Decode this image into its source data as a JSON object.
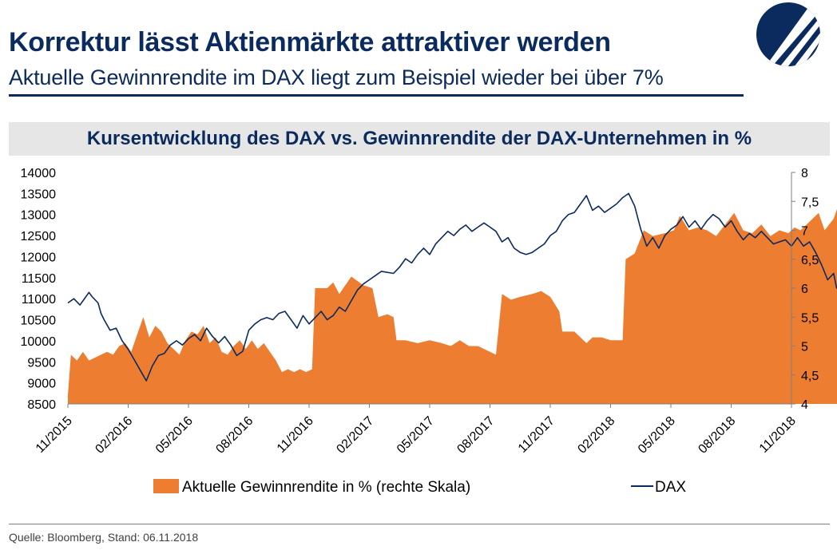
{
  "header": {
    "title": "Korrektur lässt Aktienmärkte attraktiver werden",
    "subtitle": "Aktuelle Gewinnrendite im DAX liegt zum Beispiel wieder bei über 7%"
  },
  "colors": {
    "navy": "#0b2a5e",
    "orange": "#ed7d31",
    "title_bar": "#e6e6e6"
  },
  "source": "Quelle: Bloomberg, Stand: 06.11.2018",
  "chart_data": {
    "type": "area+line",
    "title": "Kursentwicklung des DAX vs. Gewinnrendite der DAX-Unternehmen in %",
    "x_labels": [
      "11/2015",
      "02/2016",
      "05/2016",
      "08/2016",
      "11/2016",
      "02/2017",
      "05/2017",
      "08/2017",
      "11/2017",
      "02/2018",
      "05/2018",
      "08/2018",
      "11/2018"
    ],
    "xlim": [
      "2015-11",
      "2018-11"
    ],
    "y_left": {
      "min": 8500,
      "max": 14000,
      "ticks": [
        "8500",
        "9000",
        "9500",
        "10000",
        "10500",
        "11000",
        "11500",
        "12000",
        "12500",
        "13000",
        "13500",
        "14000"
      ]
    },
    "y_right": {
      "min": 4,
      "max": 8,
      "ticks": [
        "4",
        "4,5",
        "5",
        "5,5",
        "6",
        "6,5",
        "7",
        "7,5",
        "8"
      ]
    },
    "grid": false,
    "legend_position": "bottom",
    "series": [
      {
        "name": "Aktuelle Gewinnrendite in % (rechte Skala)",
        "type": "area",
        "axis": "right",
        "color": "#ed7d31",
        "points": [
          [
            0,
            4.15
          ],
          [
            0.05,
            4.85
          ],
          [
            0.15,
            4.75
          ],
          [
            0.25,
            4.9
          ],
          [
            0.35,
            4.75
          ],
          [
            0.45,
            4.8
          ],
          [
            0.55,
            4.85
          ],
          [
            0.65,
            4.9
          ],
          [
            0.75,
            4.85
          ],
          [
            0.85,
            5.0
          ],
          [
            0.95,
            5.05
          ],
          [
            1.05,
            4.9
          ],
          [
            1.15,
            5.2
          ],
          [
            1.25,
            5.5
          ],
          [
            1.35,
            5.15
          ],
          [
            1.45,
            5.35
          ],
          [
            1.55,
            5.25
          ],
          [
            1.65,
            5.05
          ],
          [
            1.75,
            4.95
          ],
          [
            1.85,
            4.85
          ],
          [
            1.95,
            5.1
          ],
          [
            2.05,
            5.25
          ],
          [
            2.15,
            5.2
          ],
          [
            2.25,
            5.35
          ],
          [
            2.35,
            5.05
          ],
          [
            2.45,
            5.15
          ],
          [
            2.55,
            4.9
          ],
          [
            2.65,
            4.85
          ],
          [
            2.75,
            5.0
          ],
          [
            2.85,
            5.1
          ],
          [
            2.95,
            4.95
          ],
          [
            3.05,
            5.1
          ],
          [
            3.15,
            4.95
          ],
          [
            3.25,
            5.05
          ],
          [
            3.35,
            4.9
          ],
          [
            3.45,
            4.75
          ],
          [
            3.55,
            4.55
          ],
          [
            3.65,
            4.6
          ],
          [
            3.75,
            4.55
          ],
          [
            3.85,
            4.6
          ],
          [
            3.95,
            4.55
          ],
          [
            4.05,
            4.6
          ],
          [
            4.1,
            6.0
          ],
          [
            4.3,
            6.0
          ],
          [
            4.4,
            6.1
          ],
          [
            4.5,
            5.9
          ],
          [
            4.7,
            6.2
          ],
          [
            4.9,
            6.05
          ],
          [
            5.05,
            6.0
          ],
          [
            5.15,
            5.5
          ],
          [
            5.3,
            5.55
          ],
          [
            5.4,
            5.5
          ],
          [
            5.45,
            5.1
          ],
          [
            5.6,
            5.1
          ],
          [
            5.8,
            5.05
          ],
          [
            6.0,
            5.1
          ],
          [
            6.2,
            5.05
          ],
          [
            6.35,
            5.0
          ],
          [
            6.5,
            5.1
          ],
          [
            6.65,
            5.0
          ],
          [
            6.8,
            5.0
          ],
          [
            7.0,
            4.9
          ],
          [
            7.1,
            4.85
          ],
          [
            7.2,
            5.9
          ],
          [
            7.35,
            5.8
          ],
          [
            7.5,
            5.85
          ],
          [
            7.7,
            5.9
          ],
          [
            7.85,
            5.95
          ],
          [
            8.0,
            5.85
          ],
          [
            8.15,
            5.6
          ],
          [
            8.2,
            5.25
          ],
          [
            8.4,
            5.25
          ],
          [
            8.6,
            5.05
          ],
          [
            8.7,
            5.15
          ],
          [
            8.85,
            5.15
          ],
          [
            9.0,
            5.1
          ],
          [
            9.2,
            5.1
          ],
          [
            9.25,
            6.5
          ],
          [
            9.4,
            6.6
          ],
          [
            9.55,
            7.0
          ],
          [
            9.7,
            6.9
          ],
          [
            9.9,
            6.95
          ],
          [
            10.05,
            7.0
          ],
          [
            10.15,
            7.25
          ],
          [
            10.3,
            7.0
          ],
          [
            10.45,
            7.05
          ],
          [
            10.6,
            7.0
          ],
          [
            10.75,
            6.9
          ],
          [
            10.9,
            7.1
          ],
          [
            11.05,
            7.3
          ],
          [
            11.2,
            7.0
          ],
          [
            11.35,
            6.95
          ],
          [
            11.5,
            7.1
          ],
          [
            11.65,
            6.9
          ],
          [
            11.8,
            7.0
          ],
          [
            11.95,
            6.95
          ],
          [
            12.05,
            7.05
          ],
          [
            12.15,
            7.0
          ],
          [
            12.25,
            7.1
          ],
          [
            12.35,
            7.2
          ],
          [
            12.45,
            7.3
          ],
          [
            12.55,
            7.0
          ],
          [
            12.7,
            7.2
          ],
          [
            12.8,
            7.5
          ],
          [
            12.9,
            7.2
          ],
          [
            13.0,
            7.25
          ]
        ]
      },
      {
        "name": "DAX",
        "type": "line",
        "axis": "left",
        "color": "#0b2a5e",
        "points": [
          [
            0,
            10900
          ],
          [
            0.1,
            11000
          ],
          [
            0.2,
            10850
          ],
          [
            0.3,
            11050
          ],
          [
            0.35,
            11150
          ],
          [
            0.4,
            11050
          ],
          [
            0.5,
            10900
          ],
          [
            0.55,
            10650
          ],
          [
            0.6,
            10500
          ],
          [
            0.7,
            10250
          ],
          [
            0.8,
            10300
          ],
          [
            0.9,
            10000
          ],
          [
            1.0,
            9800
          ],
          [
            1.1,
            9550
          ],
          [
            1.2,
            9300
          ],
          [
            1.3,
            9050
          ],
          [
            1.4,
            9400
          ],
          [
            1.5,
            9650
          ],
          [
            1.6,
            9700
          ],
          [
            1.7,
            9900
          ],
          [
            1.8,
            10000
          ],
          [
            1.9,
            9900
          ],
          [
            2.0,
            10050
          ],
          [
            2.1,
            10150
          ],
          [
            2.2,
            10000
          ],
          [
            2.3,
            10300
          ],
          [
            2.4,
            10100
          ],
          [
            2.5,
            9950
          ],
          [
            2.6,
            10100
          ],
          [
            2.7,
            9900
          ],
          [
            2.8,
            9650
          ],
          [
            2.9,
            9750
          ],
          [
            3.0,
            10250
          ],
          [
            3.1,
            10400
          ],
          [
            3.2,
            10500
          ],
          [
            3.3,
            10550
          ],
          [
            3.4,
            10500
          ],
          [
            3.5,
            10650
          ],
          [
            3.6,
            10700
          ],
          [
            3.7,
            10500
          ],
          [
            3.8,
            10300
          ],
          [
            3.9,
            10600
          ],
          [
            4.0,
            10400
          ],
          [
            4.1,
            10550
          ],
          [
            4.2,
            10700
          ],
          [
            4.3,
            10500
          ],
          [
            4.4,
            10600
          ],
          [
            4.5,
            10800
          ],
          [
            4.6,
            10700
          ],
          [
            4.8,
            11200
          ],
          [
            4.9,
            11350
          ],
          [
            5.0,
            11450
          ],
          [
            5.1,
            11550
          ],
          [
            5.2,
            11650
          ],
          [
            5.4,
            11600
          ],
          [
            5.5,
            11750
          ],
          [
            5.6,
            11950
          ],
          [
            5.7,
            11850
          ],
          [
            5.8,
            12050
          ],
          [
            5.9,
            12200
          ],
          [
            6.0,
            12050
          ],
          [
            6.1,
            12300
          ],
          [
            6.2,
            12450
          ],
          [
            6.3,
            12600
          ],
          [
            6.4,
            12500
          ],
          [
            6.5,
            12650
          ],
          [
            6.6,
            12750
          ],
          [
            6.7,
            12600
          ],
          [
            6.8,
            12700
          ],
          [
            6.9,
            12800
          ],
          [
            7.0,
            12700
          ],
          [
            7.1,
            12600
          ],
          [
            7.2,
            12350
          ],
          [
            7.3,
            12450
          ],
          [
            7.4,
            12200
          ],
          [
            7.5,
            12100
          ],
          [
            7.6,
            12050
          ],
          [
            7.7,
            12100
          ],
          [
            7.8,
            12200
          ],
          [
            7.9,
            12300
          ],
          [
            8.0,
            12500
          ],
          [
            8.1,
            12600
          ],
          [
            8.2,
            12850
          ],
          [
            8.3,
            13000
          ],
          [
            8.4,
            13050
          ],
          [
            8.5,
            13250
          ],
          [
            8.6,
            13450
          ],
          [
            8.7,
            13100
          ],
          [
            8.8,
            13200
          ],
          [
            8.9,
            13050
          ],
          [
            9.0,
            13150
          ],
          [
            9.1,
            13250
          ],
          [
            9.2,
            13400
          ],
          [
            9.3,
            13500
          ],
          [
            9.4,
            13200
          ],
          [
            9.5,
            12650
          ],
          [
            9.6,
            12250
          ],
          [
            9.7,
            12450
          ],
          [
            9.8,
            12200
          ],
          [
            9.9,
            12500
          ],
          [
            10.0,
            12650
          ],
          [
            10.1,
            12750
          ],
          [
            10.2,
            12950
          ],
          [
            10.3,
            12700
          ],
          [
            10.4,
            12850
          ],
          [
            10.5,
            12650
          ],
          [
            10.6,
            12850
          ],
          [
            10.7,
            13000
          ],
          [
            10.8,
            12900
          ],
          [
            10.9,
            12700
          ],
          [
            11.0,
            12850
          ],
          [
            11.1,
            12600
          ],
          [
            11.2,
            12400
          ],
          [
            11.3,
            12550
          ],
          [
            11.4,
            12450
          ],
          [
            11.5,
            12600
          ],
          [
            11.6,
            12450
          ],
          [
            11.7,
            12300
          ],
          [
            11.8,
            12350
          ],
          [
            11.9,
            12400
          ],
          [
            12.0,
            12250
          ],
          [
            12.1,
            12450
          ],
          [
            12.2,
            12250
          ],
          [
            12.3,
            12350
          ],
          [
            12.4,
            12100
          ],
          [
            12.5,
            11800
          ],
          [
            12.6,
            11450
          ],
          [
            12.7,
            11600
          ],
          [
            12.75,
            11250
          ],
          [
            12.85,
            11300
          ],
          [
            12.9,
            11550
          ],
          [
            13.0,
            11500
          ]
        ]
      }
    ]
  }
}
